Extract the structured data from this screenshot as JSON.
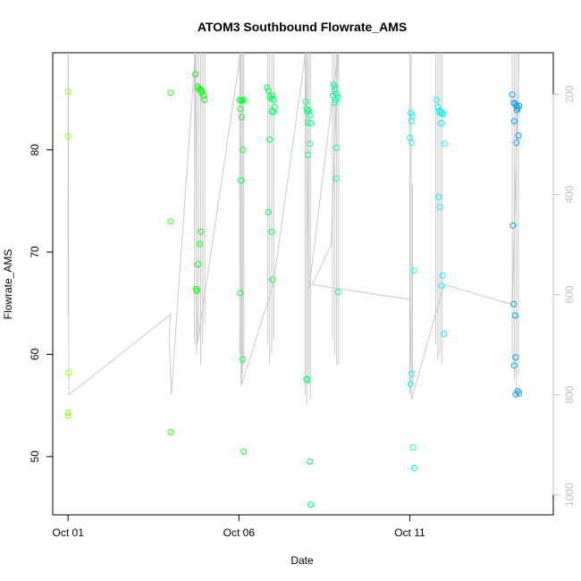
{
  "chart_data": {
    "type": "scatter",
    "title": "ATOM3 Southbound Flowrate_AMS",
    "xlabel": "Date",
    "ylabel": "Flowrate_AMS",
    "x_ticks": [
      "Oct 01",
      "Oct 06",
      "Oct 11"
    ],
    "x_tick_days": [
      1,
      6,
      11
    ],
    "xlim_days": [
      0.55,
      15.2
    ],
    "ylim": [
      44.3,
      89.5
    ],
    "y_ticks": [
      50,
      60,
      70,
      80
    ],
    "right_axis": {
      "reversed": true,
      "ticks": [
        200,
        400,
        600,
        800,
        1000
      ],
      "lim": [
        117,
        1040
      ],
      "color": "#c0c0c0"
    },
    "points": [
      {
        "d": 1.0,
        "v": 85.7
      },
      {
        "d": 1.0,
        "v": 81.3
      },
      {
        "d": 1.02,
        "v": 58.2
      },
      {
        "d": 1.0,
        "v": 54.3
      },
      {
        "d": 1.0,
        "v": 54.0
      },
      {
        "d": 4.0,
        "v": 85.6
      },
      {
        "d": 4.0,
        "v": 73.0
      },
      {
        "d": 4.0,
        "v": 52.4
      },
      {
        "d": 4.72,
        "v": 87.4
      },
      {
        "d": 4.78,
        "v": 86.2
      },
      {
        "d": 4.82,
        "v": 86.0
      },
      {
        "d": 4.87,
        "v": 85.9
      },
      {
        "d": 4.9,
        "v": 85.6
      },
      {
        "d": 4.92,
        "v": 85.8
      },
      {
        "d": 4.96,
        "v": 85.3
      },
      {
        "d": 4.99,
        "v": 84.9
      },
      {
        "d": 4.88,
        "v": 72.0
      },
      {
        "d": 4.85,
        "v": 70.8
      },
      {
        "d": 4.8,
        "v": 68.8
      },
      {
        "d": 4.75,
        "v": 66.4
      },
      {
        "d": 4.76,
        "v": 66.2
      },
      {
        "d": 6.02,
        "v": 84.9
      },
      {
        "d": 6.06,
        "v": 84.8
      },
      {
        "d": 6.1,
        "v": 84.8
      },
      {
        "d": 6.14,
        "v": 84.9
      },
      {
        "d": 6.04,
        "v": 84.0
      },
      {
        "d": 6.08,
        "v": 83.2
      },
      {
        "d": 6.12,
        "v": 80.0
      },
      {
        "d": 6.06,
        "v": 77.0
      },
      {
        "d": 6.04,
        "v": 66.0
      },
      {
        "d": 6.1,
        "v": 59.5
      },
      {
        "d": 6.14,
        "v": 50.5
      },
      {
        "d": 6.82,
        "v": 86.1
      },
      {
        "d": 6.86,
        "v": 85.8
      },
      {
        "d": 6.9,
        "v": 85.2
      },
      {
        "d": 6.94,
        "v": 85.0
      },
      {
        "d": 6.98,
        "v": 85.3
      },
      {
        "d": 7.02,
        "v": 84.9
      },
      {
        "d": 7.04,
        "v": 84.2
      },
      {
        "d": 6.96,
        "v": 83.8
      },
      {
        "d": 7.0,
        "v": 83.7
      },
      {
        "d": 6.9,
        "v": 81.0
      },
      {
        "d": 6.86,
        "v": 73.9
      },
      {
        "d": 6.95,
        "v": 72.0
      },
      {
        "d": 6.99,
        "v": 67.3
      },
      {
        "d": 7.95,
        "v": 84.7
      },
      {
        "d": 7.98,
        "v": 84.0
      },
      {
        "d": 8.0,
        "v": 83.7
      },
      {
        "d": 8.04,
        "v": 83.9
      },
      {
        "d": 8.08,
        "v": 83.4
      },
      {
        "d": 8.02,
        "v": 82.7
      },
      {
        "d": 8.1,
        "v": 82.6
      },
      {
        "d": 8.07,
        "v": 80.6
      },
      {
        "d": 8.02,
        "v": 79.5
      },
      {
        "d": 7.97,
        "v": 57.6
      },
      {
        "d": 8.01,
        "v": 57.5
      },
      {
        "d": 8.07,
        "v": 49.5
      },
      {
        "d": 8.1,
        "v": 45.3
      },
      {
        "d": 8.77,
        "v": 86.4
      },
      {
        "d": 8.81,
        "v": 86.2
      },
      {
        "d": 8.79,
        "v": 85.9
      },
      {
        "d": 8.85,
        "v": 85.5
      },
      {
        "d": 8.89,
        "v": 85.2
      },
      {
        "d": 8.75,
        "v": 85.3
      },
      {
        "d": 8.83,
        "v": 84.9
      },
      {
        "d": 8.8,
        "v": 84.6
      },
      {
        "d": 8.85,
        "v": 80.2
      },
      {
        "d": 8.85,
        "v": 77.2
      },
      {
        "d": 8.9,
        "v": 66.1
      },
      {
        "d": 11.03,
        "v": 83.6
      },
      {
        "d": 11.07,
        "v": 83.3
      },
      {
        "d": 11.05,
        "v": 82.8
      },
      {
        "d": 11.0,
        "v": 81.2
      },
      {
        "d": 11.06,
        "v": 80.7
      },
      {
        "d": 11.12,
        "v": 68.2
      },
      {
        "d": 11.05,
        "v": 58.1
      },
      {
        "d": 11.02,
        "v": 57.1
      },
      {
        "d": 11.1,
        "v": 50.9
      },
      {
        "d": 11.13,
        "v": 48.9
      },
      {
        "d": 11.78,
        "v": 84.9
      },
      {
        "d": 11.82,
        "v": 84.2
      },
      {
        "d": 11.86,
        "v": 83.8
      },
      {
        "d": 11.9,
        "v": 83.6
      },
      {
        "d": 11.94,
        "v": 83.7
      },
      {
        "d": 11.98,
        "v": 83.5
      },
      {
        "d": 11.92,
        "v": 82.6
      },
      {
        "d": 12.02,
        "v": 80.6
      },
      {
        "d": 11.85,
        "v": 75.4
      },
      {
        "d": 11.88,
        "v": 74.4
      },
      {
        "d": 11.96,
        "v": 67.7
      },
      {
        "d": 11.93,
        "v": 66.7
      },
      {
        "d": 12.0,
        "v": 62.0
      },
      {
        "d": 14.0,
        "v": 85.4
      },
      {
        "d": 14.04,
        "v": 84.6
      },
      {
        "d": 14.08,
        "v": 84.5
      },
      {
        "d": 14.12,
        "v": 84.3
      },
      {
        "d": 14.16,
        "v": 84.1
      },
      {
        "d": 14.2,
        "v": 84.3
      },
      {
        "d": 14.14,
        "v": 83.9
      },
      {
        "d": 14.06,
        "v": 82.8
      },
      {
        "d": 14.18,
        "v": 81.4
      },
      {
        "d": 14.12,
        "v": 80.7
      },
      {
        "d": 14.02,
        "v": 72.6
      },
      {
        "d": 14.04,
        "v": 64.9
      },
      {
        "d": 14.08,
        "v": 63.8
      },
      {
        "d": 14.1,
        "v": 59.7
      },
      {
        "d": 14.06,
        "v": 58.9
      },
      {
        "d": 14.16,
        "v": 56.4
      },
      {
        "d": 14.2,
        "v": 56.2
      },
      {
        "d": 14.1,
        "v": 56.1
      }
    ],
    "trace_right": [
      [
        1.0,
        0
      ],
      [
        1.02,
        800
      ],
      [
        4.0,
        640
      ],
      [
        3.96,
        680
      ],
      [
        4.02,
        800
      ],
      [
        4.72,
        0
      ],
      [
        4.78,
        700
      ],
      [
        6.05,
        0
      ],
      [
        6.08,
        780
      ],
      [
        7.0,
        580
      ],
      [
        7.95,
        0
      ],
      [
        8.05,
        590
      ],
      [
        8.9,
        0
      ],
      [
        8.7,
        500
      ],
      [
        8.15,
        580
      ],
      [
        11.0,
        610
      ],
      [
        11.05,
        810
      ],
      [
        12.0,
        580
      ],
      [
        14.0,
        620
      ],
      [
        14.2,
        0
      ]
    ],
    "spikes": [
      {
        "d": 1.0,
        "top": 0,
        "bottom": 640
      },
      {
        "d": 4.7,
        "top": 0,
        "bottom": 700
      },
      {
        "d": 4.76,
        "top": 0,
        "bottom": 720
      },
      {
        "d": 4.82,
        "top": 0,
        "bottom": 690
      },
      {
        "d": 4.88,
        "top": 0,
        "bottom": 740
      },
      {
        "d": 4.94,
        "top": 0,
        "bottom": 700
      },
      {
        "d": 5.0,
        "top": 0,
        "bottom": 660
      },
      {
        "d": 6.02,
        "top": 0,
        "bottom": 720
      },
      {
        "d": 6.06,
        "top": 0,
        "bottom": 780
      },
      {
        "d": 6.1,
        "top": 0,
        "bottom": 760
      },
      {
        "d": 6.14,
        "top": 0,
        "bottom": 740
      },
      {
        "d": 6.84,
        "top": 0,
        "bottom": 700
      },
      {
        "d": 6.9,
        "top": 0,
        "bottom": 740
      },
      {
        "d": 6.96,
        "top": 0,
        "bottom": 720
      },
      {
        "d": 7.02,
        "top": 0,
        "bottom": 690
      },
      {
        "d": 7.94,
        "top": 0,
        "bottom": 800
      },
      {
        "d": 7.99,
        "top": 0,
        "bottom": 820
      },
      {
        "d": 8.04,
        "top": 0,
        "bottom": 780
      },
      {
        "d": 8.09,
        "top": 0,
        "bottom": 810
      },
      {
        "d": 8.74,
        "top": 0,
        "bottom": 690
      },
      {
        "d": 8.8,
        "top": 0,
        "bottom": 720
      },
      {
        "d": 8.86,
        "top": 0,
        "bottom": 740
      },
      {
        "d": 8.92,
        "top": 0,
        "bottom": 740
      },
      {
        "d": 11.0,
        "top": 0,
        "bottom": 800
      },
      {
        "d": 11.04,
        "top": 0,
        "bottom": 790
      },
      {
        "d": 11.08,
        "top": 380,
        "bottom": 780
      },
      {
        "d": 11.76,
        "top": 0,
        "bottom": 700
      },
      {
        "d": 11.82,
        "top": 0,
        "bottom": 730
      },
      {
        "d": 11.88,
        "top": 0,
        "bottom": 720
      },
      {
        "d": 11.94,
        "top": 0,
        "bottom": 740
      },
      {
        "d": 14.0,
        "top": 0,
        "bottom": 730
      },
      {
        "d": 14.06,
        "top": 0,
        "bottom": 770
      },
      {
        "d": 14.12,
        "top": 0,
        "bottom": 790
      },
      {
        "d": 14.18,
        "top": 0,
        "bottom": 760
      }
    ],
    "grid": false,
    "legend": "none"
  }
}
